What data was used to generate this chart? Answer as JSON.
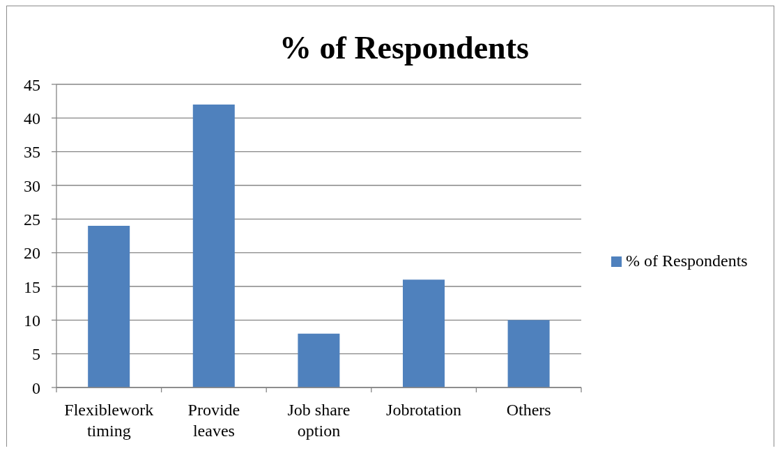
{
  "chart_data": {
    "type": "bar",
    "title": "% of Respondents",
    "categories": [
      "Flexiblework timing",
      "Provide leaves",
      "Job share option",
      "Jobrotation",
      "Others"
    ],
    "series": [
      {
        "name": "% of Respondents",
        "color": "#4f81bd",
        "values": [
          24,
          42,
          8,
          16,
          10
        ]
      }
    ],
    "ylim": [
      0,
      45
    ],
    "yticks": [
      0,
      5,
      10,
      15,
      20,
      25,
      30,
      35,
      40,
      45
    ],
    "grid": "y",
    "legend": "right"
  }
}
